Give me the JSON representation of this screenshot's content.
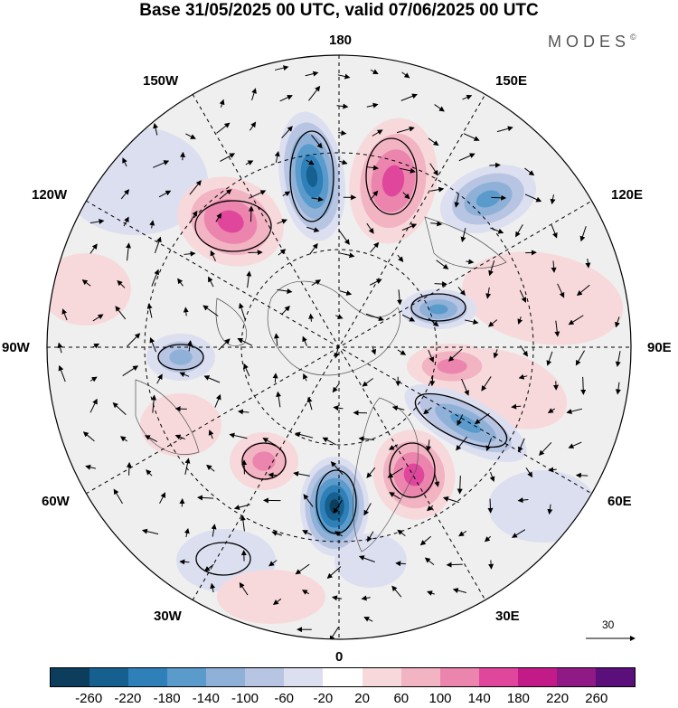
{
  "title": "Base 31/05/2025 00 UTC, valid 07/06/2025 00 UTC",
  "brand": {
    "name": "MODES",
    "mark": "©"
  },
  "longitude_labels": {
    "top": "180",
    "bottom": "0",
    "left": "90W",
    "right": "90E",
    "upper_left_1": "150W",
    "upper_left_2": "120W",
    "upper_right_1": "150E",
    "upper_right_2": "120E",
    "lower_left_1": "60W",
    "lower_left_2": "30W",
    "lower_right_1": "60E",
    "lower_right_2": "30E"
  },
  "reference_vector": {
    "value": "30"
  },
  "colorbar": {
    "colors": [
      "#0c3d5c",
      "#16608f",
      "#2f7fb8",
      "#5a9bcc",
      "#8fb1d8",
      "#b7c4e2",
      "#dcdff0",
      "#ffffff",
      "#f7d9dc",
      "#f2b3c2",
      "#eb85ad",
      "#e0479c",
      "#c21b88",
      "#8f1a86",
      "#5a0f7a"
    ],
    "tick_labels": [
      "-260",
      "-220",
      "-180",
      "-140",
      "-100",
      "-60",
      "-20",
      "20",
      "60",
      "100",
      "140",
      "180",
      "220",
      "260"
    ]
  },
  "anomaly_features": [
    {
      "name": "neg-center-150w-180",
      "sign": "negative",
      "intensity": 0.9
    },
    {
      "name": "pos-center-180-150e",
      "sign": "positive",
      "intensity": 0.85
    },
    {
      "name": "pos-center-120w",
      "sign": "positive",
      "intensity": 0.7
    },
    {
      "name": "neg-center-120e",
      "sign": "negative",
      "intensity": 0.5
    },
    {
      "name": "neg-center-0",
      "sign": "negative",
      "intensity": 0.95
    },
    {
      "name": "pos-center-30e",
      "sign": "positive",
      "intensity": 0.75
    },
    {
      "name": "neg-center-60e",
      "sign": "negative",
      "intensity": 0.6
    },
    {
      "name": "pos-center-90e",
      "sign": "positive",
      "intensity": 0.55
    },
    {
      "name": "neg-center-90e-high",
      "sign": "negative",
      "intensity": 0.5
    },
    {
      "name": "pos-center-30w",
      "sign": "positive",
      "intensity": 0.65
    },
    {
      "name": "neg-center-90w",
      "sign": "negative",
      "intensity": 0.45
    }
  ]
}
